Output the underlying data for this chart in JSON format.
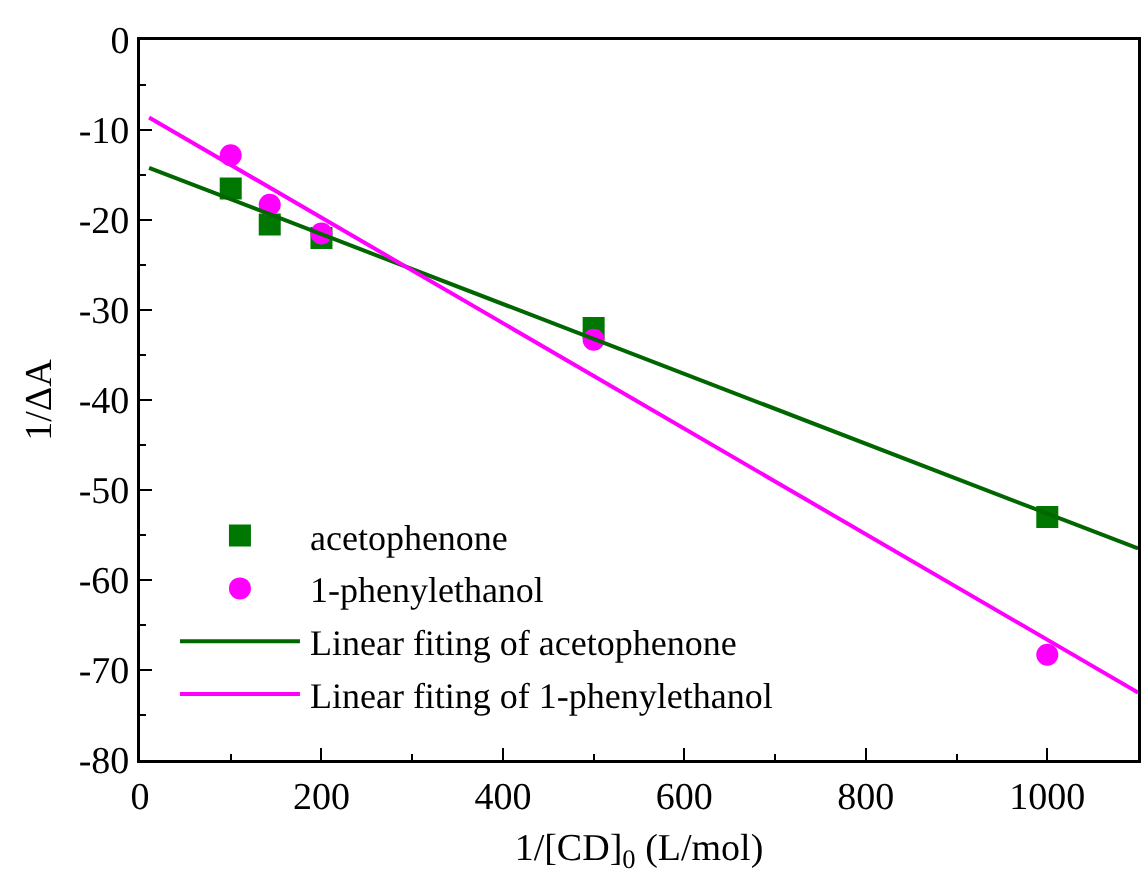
{
  "chart_data": {
    "type": "scatter",
    "xlabel": "1/[CD]$_{0}$ (L/mol)",
    "ylabel": "1/ΔA",
    "xlim": [
      0,
      1100
    ],
    "xticks": [
      0,
      200,
      400,
      600,
      800,
      1000
    ],
    "ylim": [
      -80,
      0
    ],
    "yticks": [
      -80,
      -70,
      -60,
      -50,
      -40,
      -30,
      -20,
      -10,
      0
    ],
    "grid": false,
    "legend": "bottom left",
    "series": [
      {
        "name": "acetophenone",
        "marker": "square",
        "color": "#007700",
        "x": [
          100,
          143,
          200,
          500,
          1000
        ],
        "values": [
          -16.5,
          -20.5,
          -22,
          -32,
          -53
        ]
      },
      {
        "name": "1-phenylethanol",
        "marker": "circle",
        "color": "#ff00ff",
        "x": [
          100,
          143,
          200,
          500,
          1000
        ],
        "values": [
          -12.8,
          -18.3,
          -21.5,
          -33.3,
          -68.3
        ]
      },
      {
        "name": "Linear fiting of acetophenone",
        "type": "line",
        "marker": "none",
        "line_style": "solid",
        "color": "#006600",
        "x": [
          10,
          1100
        ],
        "values": [
          -14.2,
          -56.5
        ]
      },
      {
        "name": "Linear fiting of 1-phenylethanol",
        "type": "line",
        "marker": "none",
        "line_style": "solid",
        "color": "#ff00ff",
        "x": [
          10,
          1100
        ],
        "values": [
          -8.6,
          -72.5
        ]
      }
    ]
  }
}
